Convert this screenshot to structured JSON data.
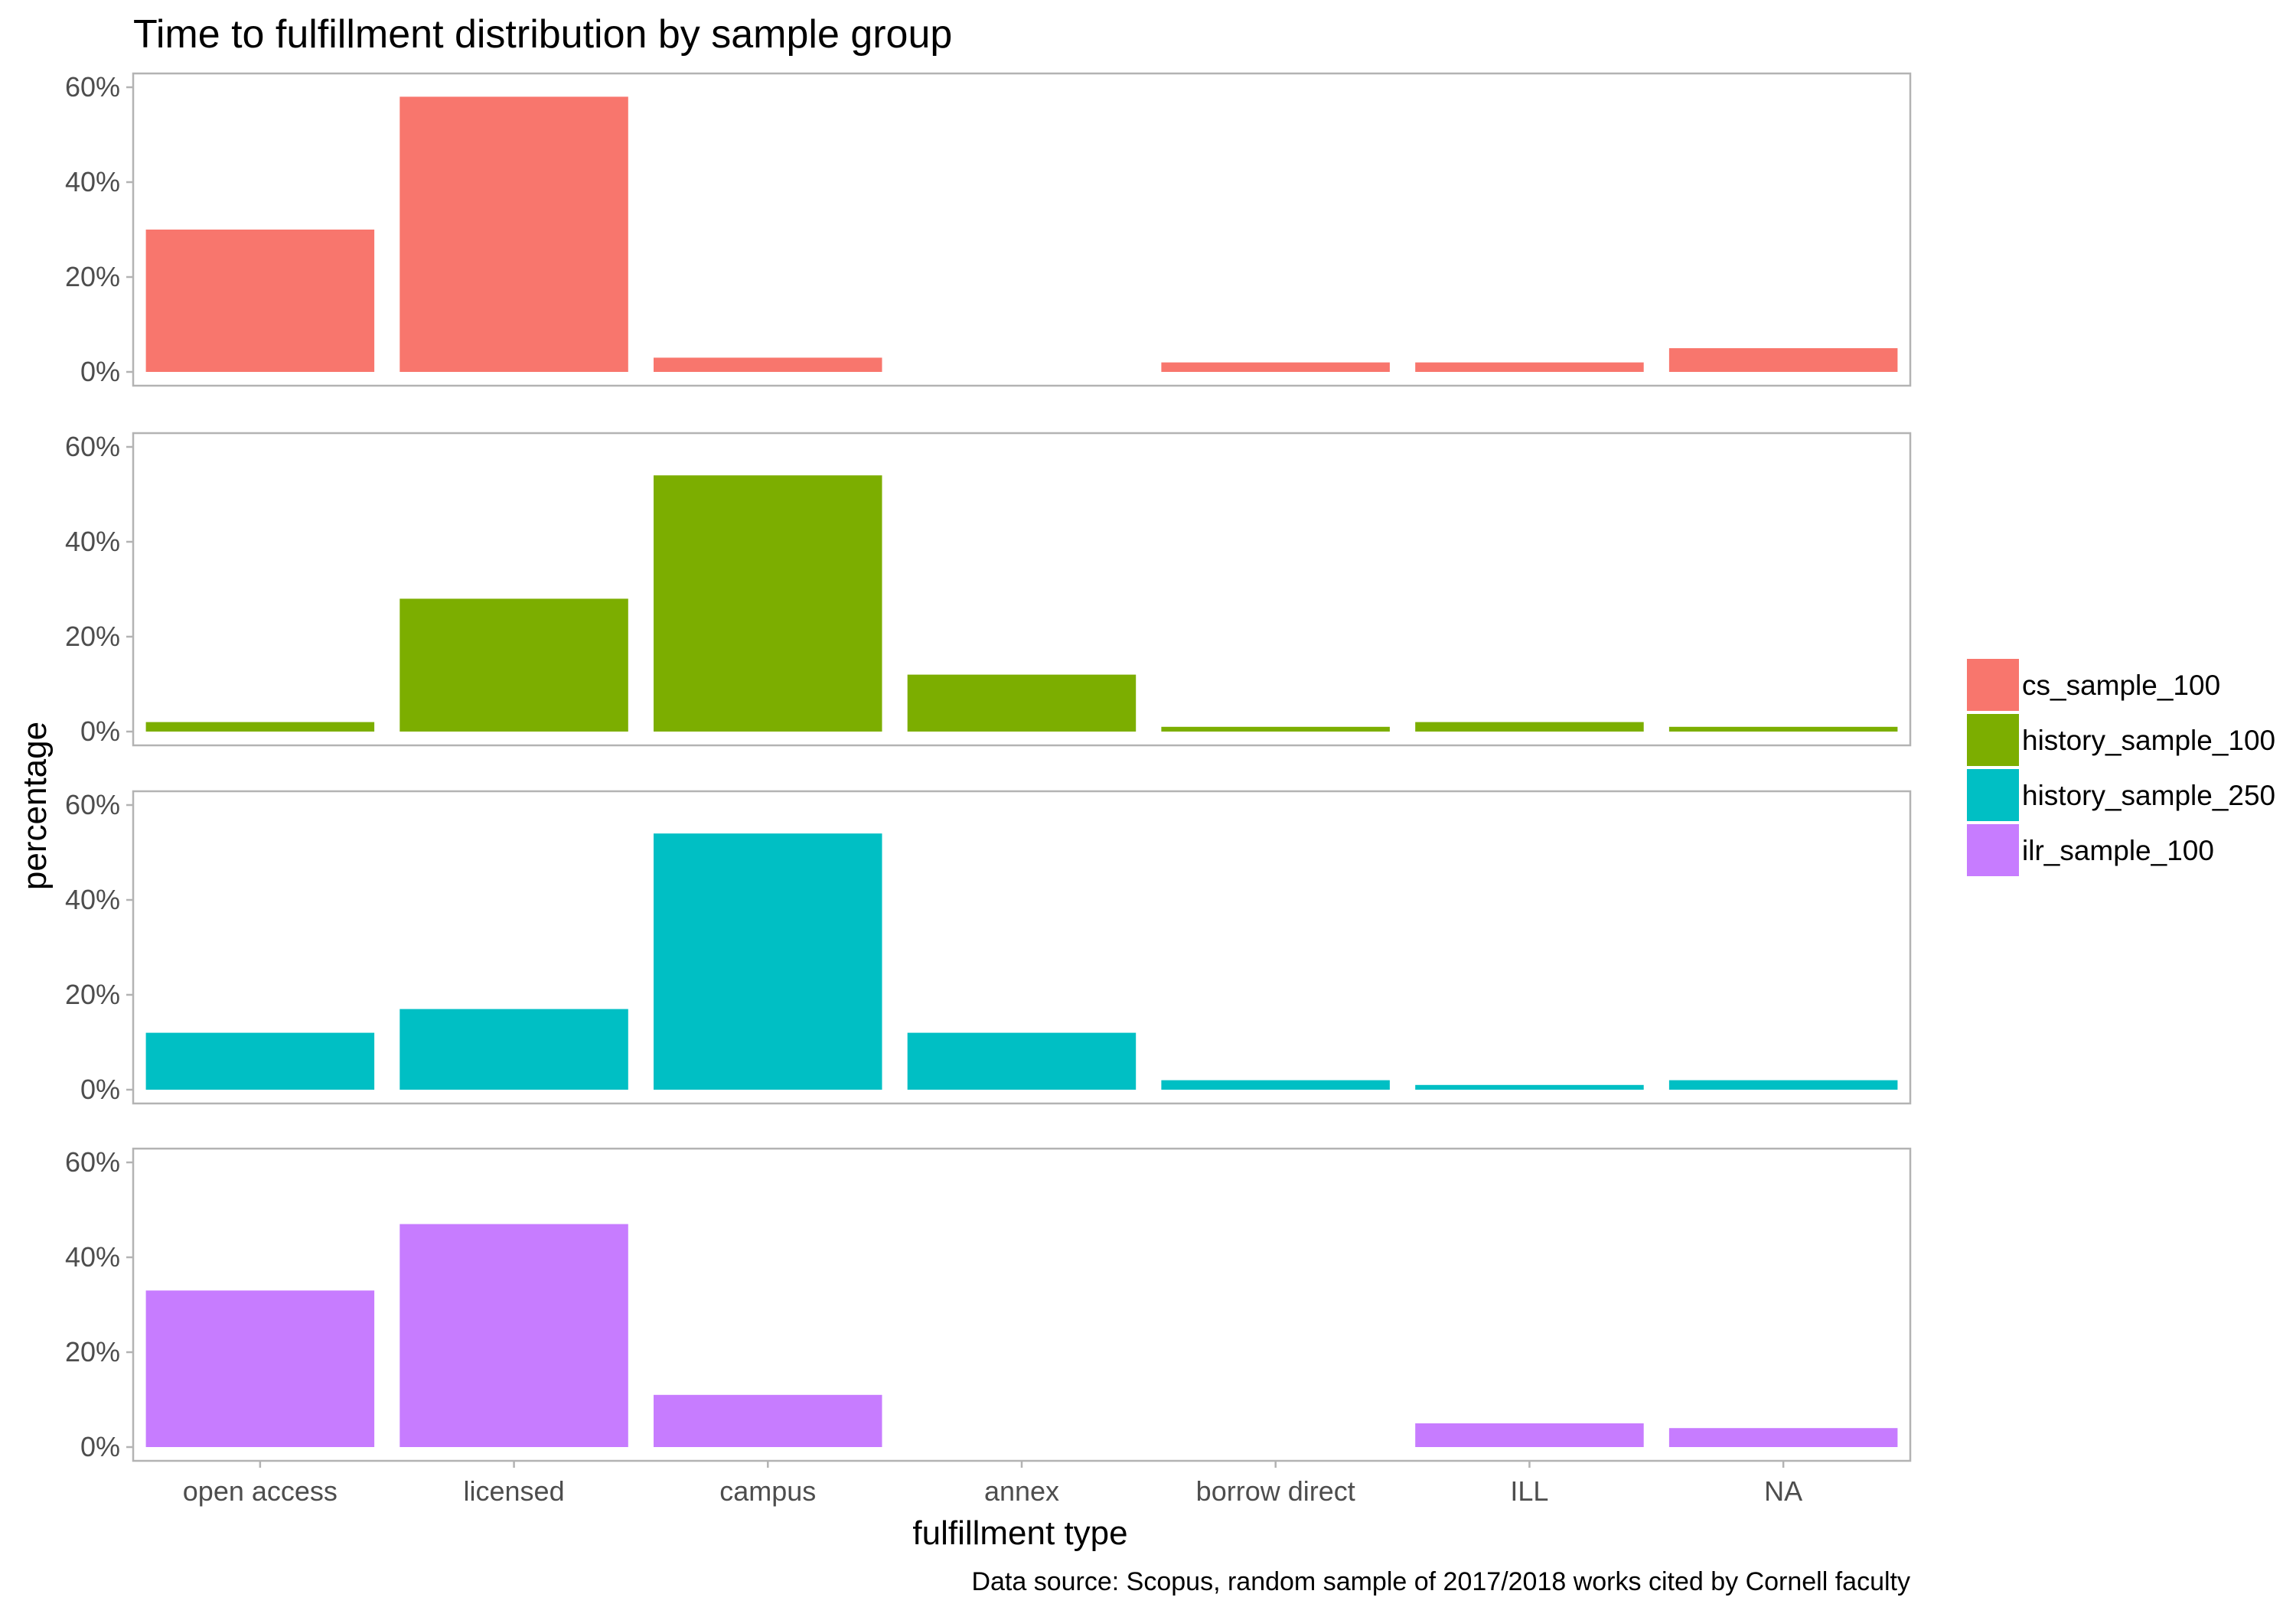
{
  "chart_data": {
    "type": "bar",
    "title": "Time to fulfillment distribution by sample group",
    "xlabel": "fulfillment type",
    "ylabel": "percentage",
    "caption": "Data source: Scopus, random sample of 2017/2018 works cited by Cornell faculty",
    "categories": [
      "open access",
      "licensed",
      "campus",
      "annex",
      "borrow direct",
      "ILL",
      "NA"
    ],
    "ylim": [
      0,
      60
    ],
    "yticks": [
      0,
      20,
      40,
      60
    ],
    "ytick_labels": [
      "0%",
      "20%",
      "40%",
      "60%"
    ],
    "facet": "rows",
    "grid": false,
    "legend_position": "right",
    "series": [
      {
        "name": "cs_sample_100",
        "color": "#F8766D",
        "values": [
          30,
          58,
          3,
          0,
          2,
          2,
          5
        ]
      },
      {
        "name": "history_sample_100",
        "color": "#7CAE00",
        "values": [
          2,
          28,
          54,
          12,
          1,
          2,
          1
        ]
      },
      {
        "name": "history_sample_250",
        "color": "#00BFC4",
        "values": [
          12,
          17,
          54,
          12,
          2,
          1,
          2
        ]
      },
      {
        "name": "ilr_sample_100",
        "color": "#C77CFF",
        "values": [
          33,
          47,
          11,
          0,
          0,
          5,
          4
        ]
      }
    ]
  }
}
